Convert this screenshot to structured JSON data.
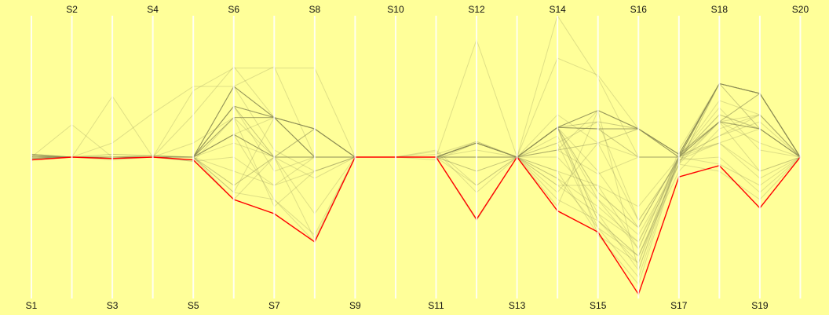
{
  "chart_data": {
    "type": "parallel_coordinates",
    "title": "",
    "axes": [
      "S1",
      "S2",
      "S3",
      "S4",
      "S5",
      "S6",
      "S7",
      "S8",
      "S9",
      "S10",
      "S11",
      "S12",
      "S13",
      "S14",
      "S15",
      "S16",
      "S17",
      "S18",
      "S19",
      "S20"
    ],
    "axis_label_placement": {
      "odd_axes": "bottom",
      "even_axes": "top"
    },
    "grid": false,
    "legend": "none",
    "value_range": [
      -1,
      1
    ],
    "background_color": "#ffff99",
    "axis_color": "#ffffff",
    "line_color": "#8c8c55",
    "highlight_color": "#ff0000",
    "series": [
      {
        "values": [
          -0.02,
          0,
          0,
          0,
          0,
          0.5,
          0.28,
          0.2,
          0,
          0,
          0,
          0.1,
          0,
          0.21,
          0.33,
          0.2,
          0.02,
          0.52,
          0.45,
          0
        ],
        "weight": 3
      },
      {
        "values": [
          -0.01,
          0,
          0,
          0,
          0,
          0.36,
          0.28,
          0.2,
          0,
          0,
          0,
          0.1,
          0,
          0.21,
          0.2,
          0.2,
          0.02,
          0.52,
          0.45,
          0
        ],
        "weight": 3
      },
      {
        "values": [
          0.02,
          0,
          0,
          0,
          0,
          0.28,
          0.28,
          0.2,
          0,
          0,
          0,
          0,
          0,
          0.21,
          0.2,
          0.2,
          0,
          0.52,
          0.45,
          0
        ],
        "weight": 2
      },
      {
        "values": [
          0,
          0,
          0,
          0,
          0,
          0.16,
          0,
          0,
          0,
          0,
          0,
          0,
          0,
          0.21,
          0.25,
          0.2,
          0.02,
          0.25,
          0.45,
          0
        ],
        "weight": 2
      },
      {
        "values": [
          0.02,
          0,
          0.02,
          0.01,
          0,
          0.16,
          0,
          0.2,
          0,
          0,
          0,
          0.1,
          0,
          0.21,
          0.2,
          0,
          0,
          0.25,
          0.2,
          0
        ],
        "weight": 2
      },
      {
        "values": [
          0,
          0,
          0,
          0.01,
          0,
          0.36,
          0.28,
          0,
          0,
          0,
          0,
          0.1,
          0,
          0.05,
          0.1,
          0.2,
          0,
          0.52,
          0.2,
          0
        ],
        "weight": 2
      },
      {
        "values": [
          0,
          0,
          0,
          0,
          0,
          0.28,
          0,
          0.2,
          0,
          0,
          0,
          0,
          0,
          0.05,
          -0.12,
          0,
          0,
          0.25,
          0.45,
          0
        ],
        "weight": 1
      },
      {
        "values": [
          -0.01,
          0,
          0,
          0,
          0,
          0.5,
          0.28,
          0.2,
          0,
          0,
          0,
          0.1,
          0,
          0.21,
          -0.25,
          -0.5,
          0,
          0.25,
          0.2,
          0
        ],
        "weight": 2
      },
      {
        "values": [
          0,
          0,
          0,
          0,
          0,
          0.36,
          0,
          0,
          0,
          0,
          0,
          0.1,
          0,
          0.21,
          -0.45,
          -0.7,
          -0.05,
          0.52,
          0.45,
          0
        ],
        "weight": 2
      },
      {
        "values": [
          0.02,
          0,
          -0.02,
          0,
          0,
          0.5,
          0.28,
          0,
          0,
          0,
          0,
          0,
          0,
          -0.25,
          0.1,
          0,
          0,
          0.15,
          0.3,
          0
        ],
        "weight": 1
      },
      {
        "values": [
          0,
          0,
          0,
          0,
          -0.03,
          0,
          -0.2,
          -0.1,
          0,
          0,
          0,
          0,
          0,
          -0.15,
          -0.35,
          -0.6,
          0,
          -0.05,
          -0.2,
          0
        ],
        "weight": 1
      },
      {
        "values": [
          0,
          0,
          0,
          0,
          0,
          -0.25,
          -0.3,
          -0.6,
          0,
          0,
          0,
          -0.1,
          0,
          -0.3,
          -0.45,
          -0.75,
          -0.02,
          0,
          -0.25,
          0
        ],
        "weight": 1
      },
      {
        "values": [
          0.01,
          0,
          0,
          0,
          0,
          -0.3,
          0,
          -0.58,
          0,
          0,
          0,
          0,
          0,
          -0.2,
          -0.4,
          -0.8,
          0.02,
          0.1,
          -0.15,
          0
        ],
        "weight": 1
      },
      {
        "values": [
          0,
          0.23,
          0,
          0,
          0,
          -0.1,
          -0.2,
          0,
          0,
          0,
          0,
          0.11,
          0,
          0.21,
          0.33,
          0.2,
          0,
          0.52,
          0.45,
          0
        ],
        "weight": 1
      },
      {
        "values": [
          0.01,
          0,
          0.43,
          0,
          0,
          0.28,
          0.28,
          0,
          0,
          0,
          0,
          0,
          0,
          0,
          -0.3,
          -0.65,
          0,
          0.25,
          0.3,
          0
        ],
        "weight": 1
      },
      {
        "values": [
          0,
          0,
          0.1,
          0.31,
          0.5,
          0.5,
          0.64,
          0,
          0,
          0,
          0.02,
          0.11,
          0,
          -0.15,
          -0.5,
          -0.85,
          0,
          0.3,
          0.2,
          0
        ],
        "weight": 1
      },
      {
        "values": [
          0,
          0,
          0,
          0,
          0.47,
          0.63,
          0.63,
          0.63,
          0,
          0,
          0,
          0,
          0,
          0.7,
          0.58,
          0.2,
          0,
          0.52,
          0.45,
          0
        ],
        "weight": 1
      },
      {
        "values": [
          0,
          0,
          0,
          0,
          0.3,
          0.64,
          0.28,
          0,
          0,
          0,
          0,
          0.83,
          0,
          1.0,
          0.56,
          0,
          0,
          0.4,
          0.3,
          0
        ],
        "weight": 1
      },
      {
        "values": [
          0,
          0,
          0,
          0,
          0,
          0.16,
          0,
          0,
          0,
          0,
          0,
          0,
          0,
          0.21,
          0.33,
          0.2,
          0.02,
          0.52,
          0.45,
          0
        ],
        "weight": 2
      },
      {
        "values": [
          0.01,
          0,
          0,
          0,
          0.1,
          0.28,
          0.28,
          0.2,
          0,
          0,
          0,
          0,
          0,
          0.1,
          -0.5,
          -0.7,
          -0.1,
          0.2,
          0.3,
          0
        ],
        "weight": 1
      },
      {
        "values": [
          0,
          0,
          0,
          0,
          0,
          0.16,
          0.28,
          0,
          0,
          0,
          0,
          -0.1,
          0,
          0.21,
          -0.55,
          -0.9,
          0,
          0.1,
          -0.1,
          0
        ],
        "weight": 1
      },
      {
        "values": [
          0,
          0,
          0,
          0,
          0,
          -0.2,
          0,
          -0.4,
          0,
          0,
          0,
          0,
          0,
          0.05,
          0.33,
          0.2,
          0.02,
          0.25,
          0.2,
          0
        ],
        "weight": 1
      },
      {
        "values": [
          0,
          0,
          0,
          0,
          0,
          0.36,
          -0.1,
          0,
          0,
          0,
          0,
          -0.2,
          0,
          0.21,
          -0.3,
          -0.55,
          -0.05,
          -0.1,
          -0.3,
          0
        ],
        "weight": 1
      },
      {
        "values": [
          0,
          0,
          0,
          0,
          0,
          0.5,
          0.28,
          0.2,
          0,
          0,
          0,
          0.1,
          0,
          0.21,
          -0.1,
          -0.5,
          0,
          0.52,
          0.45,
          0
        ],
        "weight": 1
      },
      {
        "values": [
          0,
          0,
          0,
          0,
          0,
          -0.2,
          0,
          0,
          0,
          0,
          0,
          0.1,
          0,
          -0.1,
          -0.2,
          -0.65,
          0,
          0.3,
          0.2,
          0
        ],
        "weight": 1
      },
      {
        "values": [
          0,
          0,
          0,
          0,
          0,
          0.16,
          -0.3,
          -0.55,
          0,
          0,
          0.05,
          -0.2,
          0,
          0.3,
          0.1,
          -0.45,
          -0.02,
          0.1,
          0.2,
          0
        ],
        "weight": 1
      },
      {
        "values": [
          0.01,
          0,
          0,
          0,
          -0.03,
          0.28,
          -0.35,
          -0.1,
          0,
          0,
          0.04,
          -0.25,
          0,
          -0.2,
          -0.2,
          -0.35,
          0,
          0.15,
          0.25,
          0
        ],
        "weight": 1
      },
      {
        "values": [
          0,
          0,
          0,
          0,
          0,
          0.5,
          0.05,
          -0.1,
          0,
          0,
          -0.02,
          0.1,
          0,
          0.1,
          0.25,
          -0.45,
          -0.03,
          0.25,
          0.1,
          0
        ],
        "weight": 1
      },
      {
        "values": [
          0,
          0,
          0,
          0,
          0,
          -0.25,
          0.28,
          0,
          0,
          0,
          0,
          0,
          0,
          -0.35,
          0.33,
          -0.8,
          0,
          0.35,
          0.05,
          0
        ],
        "weight": 1
      },
      {
        "values": [
          0.01,
          0,
          0,
          0,
          0,
          0.1,
          0,
          -0.15,
          0,
          0,
          0,
          0.05,
          0,
          0.15,
          -0.4,
          -0.6,
          -0.05,
          0.25,
          -0.1,
          0
        ],
        "weight": 1
      },
      {
        "values": [
          0,
          0,
          0,
          0,
          0,
          0.36,
          0.28,
          0,
          0,
          0,
          0,
          -0.45,
          0,
          -0.1,
          -0.55,
          -0.75,
          0.05,
          0.52,
          0.45,
          0
        ],
        "weight": 1
      },
      {
        "values": [
          -0.02,
          0,
          -0.01,
          0,
          -0.02,
          -0.3,
          -0.4,
          -0.6,
          0,
          0,
          0,
          -0.44,
          0,
          -0.38,
          -0.53,
          -0.97,
          -0.14,
          -0.06,
          -0.36,
          0
        ],
        "weight": 1,
        "highlight": true
      }
    ]
  }
}
